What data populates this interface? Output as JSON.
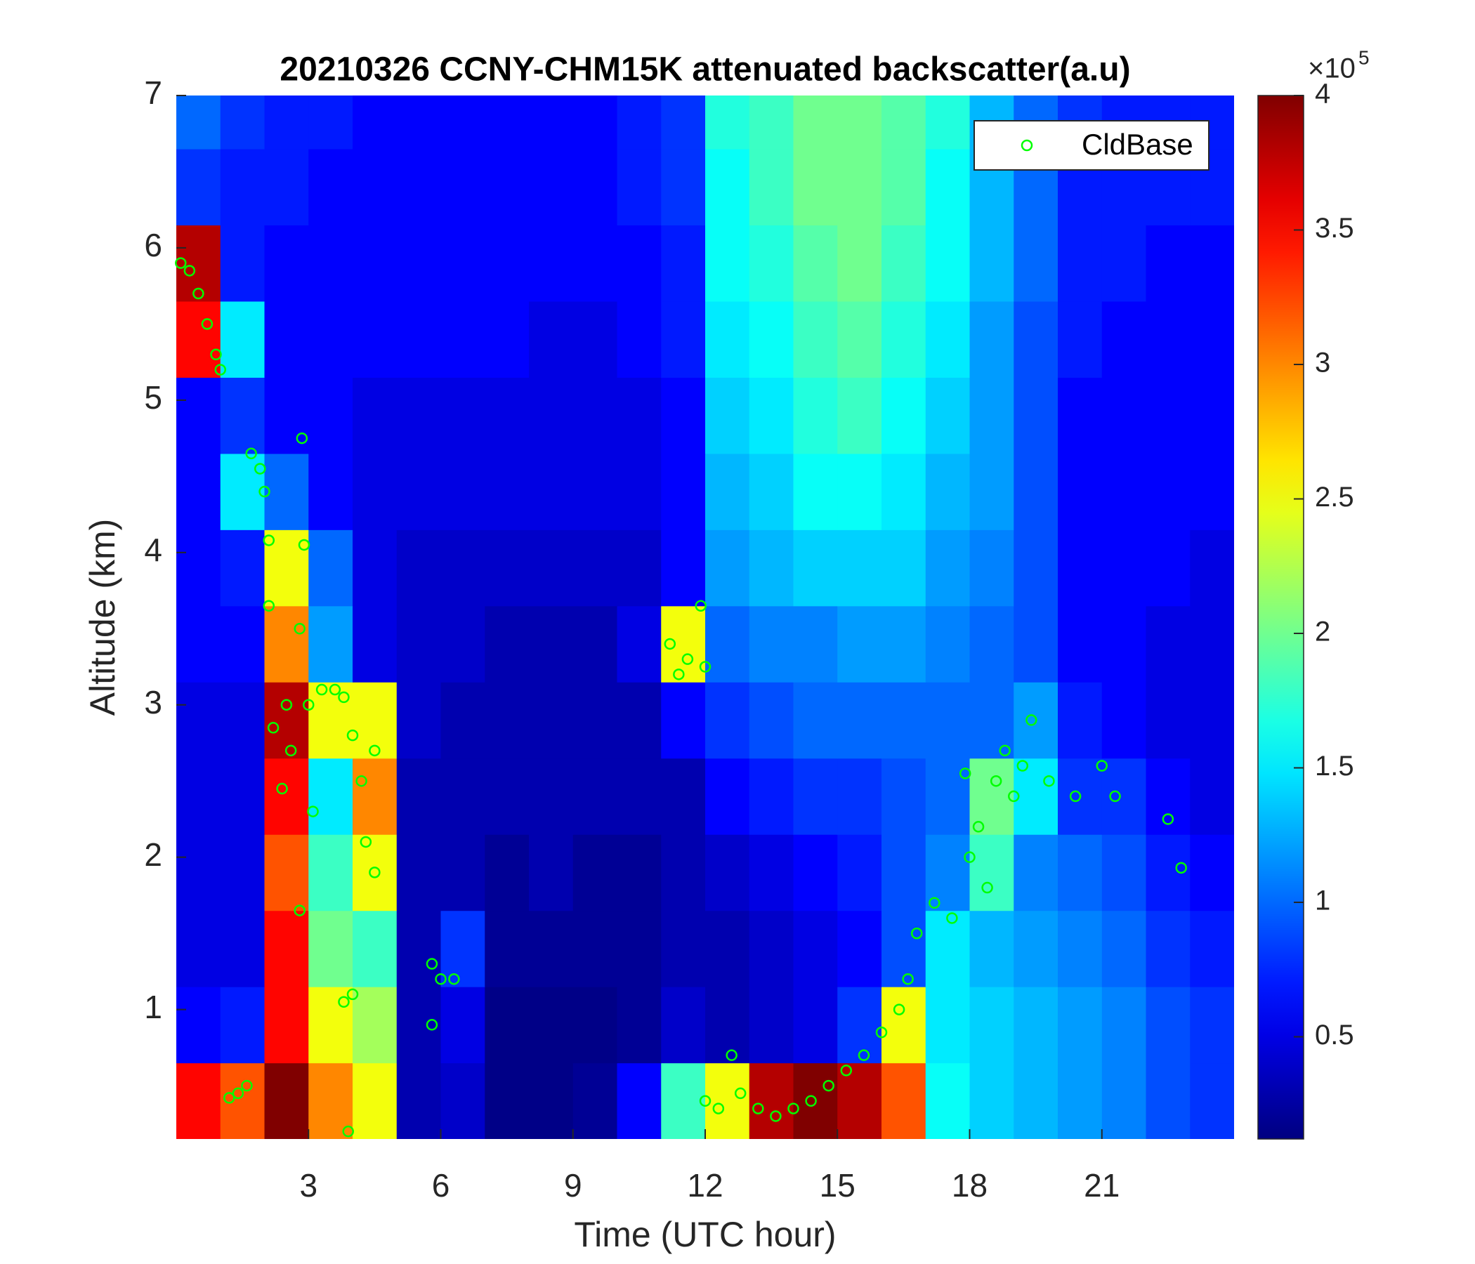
{
  "chart_data": {
    "type": "heatmap",
    "title": "20210326 CCNY-CHM15K attenuated backscatter(a.u)",
    "xlabel": "Time (UTC hour)",
    "ylabel": "Altitude (km)",
    "xlim": [
      0,
      24
    ],
    "ylim": [
      0.15,
      7
    ],
    "xticks": [
      3,
      6,
      9,
      12,
      15,
      18,
      21
    ],
    "yticks": [
      1,
      2,
      3,
      4,
      5,
      6,
      7
    ],
    "colormap": "jet",
    "clim": [
      0.12,
      4
    ],
    "cticks": [
      0.5,
      1,
      1.5,
      2,
      2.5,
      3,
      3.5,
      4
    ],
    "c_multiplier": {
      "base": "×10",
      "power": "5"
    },
    "x": [
      0.5,
      1.5,
      2.5,
      3.5,
      4.5,
      5.5,
      6.5,
      7.5,
      8.5,
      9.5,
      10.5,
      11.5,
      12.5,
      13.5,
      14.5,
      15.5,
      16.5,
      17.5,
      18.5,
      19.5,
      20.5,
      21.5,
      22.5,
      23.5
    ],
    "y": [
      0.4,
      0.9,
      1.4,
      1.9,
      2.4,
      2.9,
      3.4,
      3.9,
      4.4,
      4.9,
      5.4,
      5.9,
      6.4,
      6.9
    ],
    "z": [
      [
        3.5,
        3.2,
        4,
        3,
        2.5,
        0.3,
        0.4,
        0.15,
        0.15,
        0.2,
        0.6,
        1.8,
        2.5,
        3.8,
        4,
        3.8,
        3.2,
        1.6,
        1.4,
        1.3,
        1.2,
        1.1,
        0.9,
        0.8
      ],
      [
        0.6,
        0.7,
        3.5,
        2.5,
        2.2,
        0.3,
        0.5,
        0.15,
        0.15,
        0.15,
        0.2,
        0.4,
        0.3,
        0.4,
        0.5,
        0.8,
        2.5,
        1.5,
        1.4,
        1.3,
        1.2,
        1.1,
        0.9,
        0.8
      ],
      [
        0.5,
        0.5,
        3.5,
        2,
        1.8,
        0.3,
        0.8,
        0.2,
        0.2,
        0.2,
        0.2,
        0.3,
        0.3,
        0.4,
        0.5,
        0.6,
        0.9,
        1.5,
        1.3,
        1.2,
        1.1,
        1,
        0.8,
        0.7
      ],
      [
        0.5,
        0.5,
        3.2,
        1.8,
        2.5,
        0.3,
        0.3,
        0.2,
        0.3,
        0.2,
        0.2,
        0.3,
        0.4,
        0.5,
        0.6,
        0.7,
        0.9,
        1.1,
        1.8,
        1.1,
        1,
        0.9,
        0.7,
        0.6
      ],
      [
        0.5,
        0.5,
        3.5,
        1.5,
        3,
        0.3,
        0.3,
        0.3,
        0.3,
        0.3,
        0.3,
        0.3,
        0.6,
        0.7,
        0.8,
        0.8,
        0.9,
        1,
        2,
        1.5,
        0.8,
        0.8,
        0.6,
        0.5
      ],
      [
        0.5,
        0.5,
        3.8,
        2.5,
        2.5,
        0.4,
        0.3,
        0.3,
        0.3,
        0.3,
        0.3,
        0.6,
        0.8,
        0.9,
        1,
        1,
        1,
        1,
        1,
        1.2,
        0.7,
        0.6,
        0.5,
        0.5
      ],
      [
        0.6,
        0.6,
        3,
        1.2,
        0.5,
        0.4,
        0.4,
        0.3,
        0.3,
        0.3,
        0.5,
        2.5,
        1,
        1.1,
        1.1,
        1.2,
        1.2,
        1.1,
        1,
        0.9,
        0.6,
        0.6,
        0.5,
        0.5
      ],
      [
        0.6,
        0.7,
        2.5,
        1,
        0.5,
        0.4,
        0.4,
        0.4,
        0.4,
        0.4,
        0.4,
        0.6,
        1.2,
        1.3,
        1.4,
        1.4,
        1.4,
        1.2,
        1.1,
        0.9,
        0.6,
        0.6,
        0.6,
        0.5
      ],
      [
        0.6,
        1.5,
        1,
        0.6,
        0.5,
        0.5,
        0.5,
        0.5,
        0.5,
        0.5,
        0.5,
        0.6,
        1.3,
        1.4,
        1.6,
        1.6,
        1.5,
        1.3,
        1.2,
        0.9,
        0.6,
        0.6,
        0.6,
        0.6
      ],
      [
        0.6,
        0.8,
        0.6,
        0.6,
        0.5,
        0.5,
        0.5,
        0.5,
        0.5,
        0.5,
        0.5,
        0.6,
        1.4,
        1.5,
        1.7,
        1.8,
        1.6,
        1.4,
        1.2,
        0.9,
        0.6,
        0.6,
        0.6,
        0.6
      ],
      [
        3.5,
        1.5,
        0.6,
        0.6,
        0.6,
        0.6,
        0.6,
        0.6,
        0.5,
        0.5,
        0.6,
        0.7,
        1.5,
        1.6,
        1.8,
        1.9,
        1.7,
        1.5,
        1.2,
        0.9,
        0.7,
        0.6,
        0.6,
        0.6
      ],
      [
        3.8,
        0.7,
        0.6,
        0.6,
        0.6,
        0.6,
        0.6,
        0.6,
        0.6,
        0.6,
        0.6,
        0.7,
        1.6,
        1.7,
        1.9,
        2,
        1.8,
        1.6,
        1.3,
        1,
        0.7,
        0.7,
        0.6,
        0.6
      ],
      [
        0.8,
        0.7,
        0.7,
        0.6,
        0.6,
        0.6,
        0.6,
        0.6,
        0.6,
        0.6,
        0.7,
        0.8,
        1.6,
        1.8,
        2,
        2,
        1.9,
        1.6,
        1.3,
        1,
        0.7,
        0.7,
        0.7,
        0.7
      ],
      [
        1,
        0.8,
        0.7,
        0.7,
        0.6,
        0.6,
        0.6,
        0.6,
        0.6,
        0.6,
        0.7,
        0.8,
        1.7,
        1.8,
        2,
        2,
        1.9,
        1.7,
        1.3,
        1,
        0.8,
        0.7,
        0.7,
        0.7
      ]
    ],
    "legend": "northeast",
    "series": [
      {
        "type": "scatter",
        "name": "CldBase",
        "color": "#00ff00",
        "x": [
          0.1,
          0.3,
          0.5,
          0.7,
          0.9,
          1,
          1.7,
          1.9,
          2,
          2.1,
          2.1,
          2.2,
          2.4,
          2.5,
          2.6,
          2.8,
          2.85,
          2.9,
          2.8,
          3,
          3.1,
          3.3,
          3.6,
          3.8,
          4,
          4.2,
          4.3,
          4.5,
          4.5,
          3.8,
          4,
          1.2,
          1.4,
          1.6,
          3.9,
          5.8,
          6,
          6.3,
          5.8,
          11.2,
          11.4,
          11.6,
          11.9,
          12,
          12,
          12.3,
          12.6,
          12.8,
          13.2,
          13.6,
          14,
          14.4,
          14.8,
          15.2,
          15.6,
          16,
          16.4,
          16.6,
          16.8,
          17.2,
          17.6,
          17.9,
          18,
          18.2,
          18.4,
          18.6,
          18.8,
          19,
          19.2,
          19.4,
          19.8,
          20.4,
          21,
          21.3,
          22.5,
          22.8
        ],
        "y": [
          5.9,
          5.85,
          5.7,
          5.5,
          5.3,
          5.2,
          4.65,
          4.55,
          4.4,
          4.08,
          3.65,
          2.85,
          2.45,
          3,
          2.7,
          3.5,
          4.75,
          4.05,
          1.65,
          3,
          2.3,
          3.1,
          3.1,
          3.05,
          2.8,
          2.5,
          2.1,
          2.7,
          1.9,
          1.05,
          1.1,
          0.42,
          0.45,
          0.5,
          0.2,
          1.3,
          1.2,
          1.2,
          0.9,
          3.4,
          3.2,
          3.3,
          3.65,
          3.25,
          0.4,
          0.35,
          0.7,
          0.45,
          0.35,
          0.3,
          0.35,
          0.4,
          0.5,
          0.6,
          0.7,
          0.85,
          1,
          1.2,
          1.5,
          1.7,
          1.6,
          2.55,
          2,
          2.2,
          1.8,
          2.5,
          2.7,
          2.4,
          2.6,
          2.9,
          2.5,
          2.4,
          2.6,
          2.4,
          2.25,
          1.93
        ]
      }
    ]
  }
}
